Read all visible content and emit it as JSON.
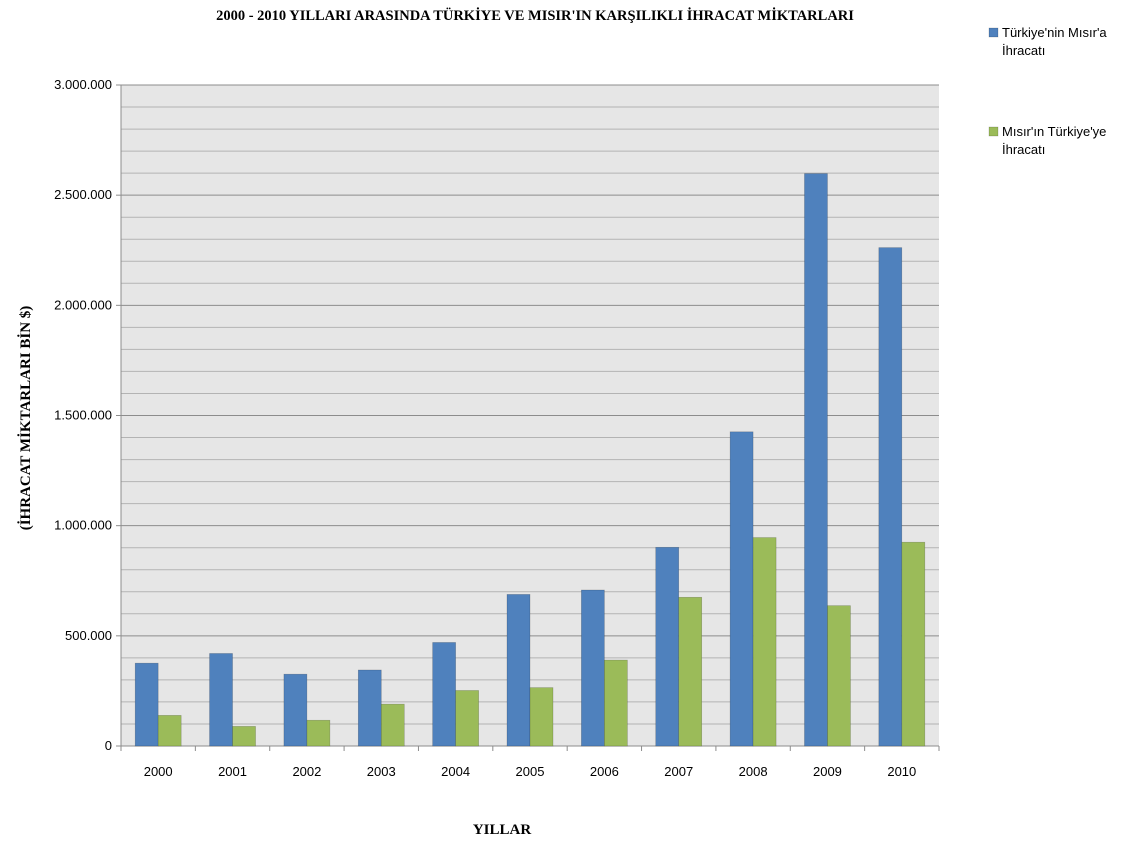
{
  "chart_data": {
    "type": "bar",
    "title": "2000 - 2010 YILLARI ARASINDA TÜRKİYE VE MISIR'IN KARŞILIKLI İHRACAT MİKTARLARI",
    "xlabel": "YILLAR",
    "ylabel": "(İHRACAT MİKTARLARI BİN $)",
    "categories": [
      "2000",
      "2001",
      "2002",
      "2003",
      "2004",
      "2005",
      "2006",
      "2007",
      "2008",
      "2009",
      "2010"
    ],
    "series": [
      {
        "name": "Türkiye'nin Mısır'a İhracatı",
        "legend_lines": [
          "Türkiye'nin Mısır'a",
          "İhracatı"
        ],
        "color": "#4f81bd",
        "values": [
          376000,
          420000,
          326000,
          345000,
          470000,
          688000,
          708000,
          902000,
          1426000,
          2598000,
          2262000
        ]
      },
      {
        "name": "Mısır'ın Türkiye'ye İhracatı",
        "legend_lines": [
          "Mısır'ın Türkiye'ye",
          "İhracatı"
        ],
        "color": "#9bbb59",
        "values": [
          139000,
          89000,
          117000,
          190000,
          252000,
          265000,
          390000,
          675000,
          946000,
          637000,
          925000
        ]
      }
    ],
    "ylim": [
      0,
      3000000
    ],
    "yticks": [
      0,
      500000,
      1000000,
      1500000,
      2000000,
      2500000,
      3000000
    ],
    "ytick_labels": [
      "0",
      "500.000",
      "1.000.000",
      "1.500.000",
      "2.000.000",
      "2.500.000",
      "3.000.000"
    ],
    "minor_gridlines_per_major": 5,
    "grid": true,
    "plot_background": "#e6e6e6",
    "gridline_color": "#8c8c8c",
    "legend_position": "top-right"
  }
}
